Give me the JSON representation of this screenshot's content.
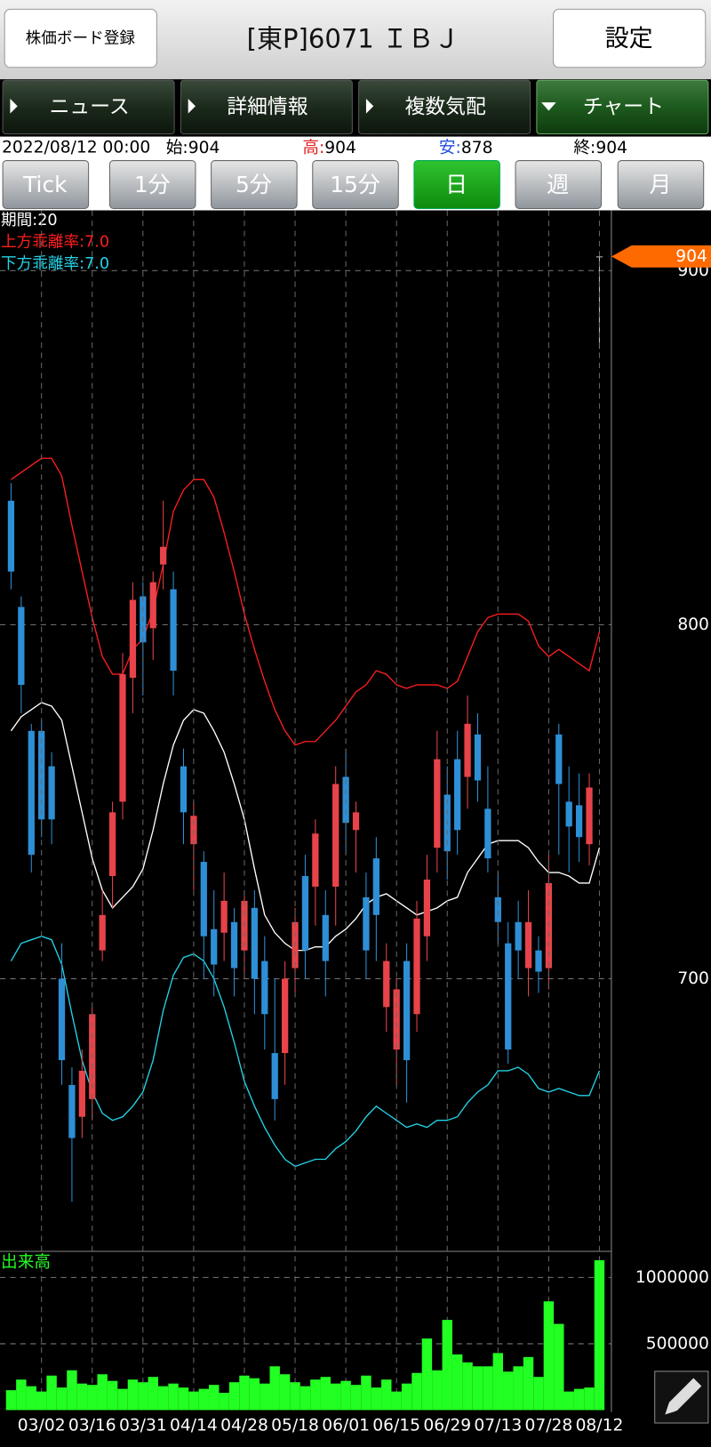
{
  "header": {
    "left_button": "株価ボード登録",
    "title": "[東P]6071 ＩＢＪ",
    "right_button": "設定"
  },
  "tabs": [
    "ニュース",
    "詳細情報",
    "複数気配",
    "チャート"
  ],
  "info": {
    "datetime": "2022/08/12 00:00",
    "open_label": "始:",
    "open": 904,
    "high_label": "高:",
    "high": 904,
    "low_label": "安:",
    "low": 878,
    "close_label": "終:",
    "close": 904
  },
  "periods": [
    "Tick",
    "1分",
    "5分",
    "15分",
    "日",
    "週",
    "月"
  ],
  "chart_data": [
    {
      "type": "candlestick",
      "ylim": [
        623,
        917
      ],
      "yticks": [
        700,
        800,
        900
      ],
      "grid": true,
      "last_price": 904,
      "up_color": "#e8434a",
      "down_color": "#2e8fd6",
      "doji_color": "#bbbbbb",
      "candles": {
        "open": [
          835,
          805,
          770,
          770,
          760,
          700,
          670,
          661,
          666,
          708,
          729,
          750,
          785,
          808,
          799,
          817,
          810,
          760,
          738,
          733,
          714,
          713,
          716,
          708,
          720,
          705,
          679,
          679,
          703,
          729,
          726,
          718,
          726,
          757,
          742,
          723,
          734,
          692,
          680,
          705,
          690,
          712,
          737,
          752,
          762,
          757,
          769,
          748,
          723,
          710,
          716,
          703,
          708,
          703,
          769,
          750,
          749,
          738,
          904
        ],
        "high": [
          840,
          808,
          772,
          773,
          764,
          710,
          675,
          680,
          692,
          725,
          750,
          792,
          812,
          812,
          815,
          835,
          815,
          765,
          750,
          736,
          725,
          730,
          720,
          725,
          725,
          712,
          700,
          705,
          720,
          735,
          745,
          725,
          760,
          765,
          750,
          730,
          740,
          710,
          700,
          710,
          722,
          735,
          770,
          760,
          770,
          780,
          775,
          760,
          730,
          716,
          722,
          725,
          712,
          735,
          772,
          760,
          758,
          758,
          904
        ],
        "low": [
          810,
          775,
          730,
          740,
          738,
          670,
          637,
          655,
          660,
          705,
          720,
          745,
          775,
          780,
          790,
          810,
          780,
          738,
          725,
          700,
          695,
          705,
          695,
          700,
          690,
          680,
          660,
          670,
          695,
          700,
          715,
          695,
          715,
          735,
          730,
          700,
          705,
          685,
          670,
          665,
          685,
          705,
          730,
          728,
          735,
          748,
          750,
          730,
          710,
          676,
          700,
          695,
          696,
          697,
          735,
          730,
          733,
          732,
          878
        ],
        "close": [
          815,
          783,
          735,
          745,
          745,
          677,
          655,
          674,
          690,
          718,
          747,
          786,
          807,
          795,
          812,
          822,
          787,
          747,
          746,
          712,
          704,
          722,
          703,
          722,
          700,
          690,
          666,
          700,
          716,
          708,
          741,
          705,
          755,
          744,
          747,
          708,
          718,
          705,
          697,
          677,
          717,
          728,
          762,
          736,
          742,
          772,
          756,
          734,
          716,
          680,
          708,
          716,
          702,
          727,
          755,
          743,
          740,
          754,
          904
        ]
      },
      "series": [
        {
          "name": "期間:20",
          "color": "#ffffff",
          "values": [
            770,
            774,
            776,
            778,
            777,
            773,
            760,
            747,
            734,
            725,
            720,
            723,
            726,
            731,
            742,
            755,
            766,
            773,
            776,
            775,
            770,
            764,
            755,
            745,
            731,
            718,
            713,
            710,
            708,
            708,
            709,
            709,
            712,
            714,
            717,
            721,
            723,
            724,
            722,
            720,
            718,
            719,
            720,
            722,
            723,
            730,
            734,
            738,
            739,
            739,
            739,
            737,
            733,
            730,
            730,
            729,
            727,
            727,
            737
          ]
        },
        {
          "name": "上方乖離率:7.0",
          "color": "#ff1e1e",
          "values": [
            841,
            843,
            845,
            847,
            847,
            842,
            828,
            815,
            802,
            791,
            786,
            786,
            793,
            796,
            804,
            817,
            832,
            838,
            841,
            841,
            836,
            826,
            815,
            803,
            793,
            784,
            776,
            770,
            766,
            767,
            767,
            770,
            773,
            777,
            781,
            783,
            787,
            786,
            783,
            782,
            783,
            783,
            783,
            782,
            784,
            791,
            798,
            802,
            803,
            803,
            803,
            801,
            794,
            791,
            793,
            791,
            789,
            787,
            798
          ]
        },
        {
          "name": "下方乖離率:7.0",
          "color": "#22d3e6",
          "values": [
            705,
            710,
            711,
            712,
            711,
            704,
            690,
            677,
            668,
            662,
            660,
            661,
            664,
            668,
            677,
            691,
            701,
            706,
            707,
            705,
            700,
            692,
            682,
            671,
            664,
            658,
            653,
            649,
            647,
            648,
            649,
            649,
            652,
            654,
            657,
            661,
            664,
            662,
            660,
            658,
            659,
            658,
            660,
            660,
            661,
            665,
            668,
            670,
            674,
            674,
            675,
            673,
            669,
            668,
            669,
            668,
            667,
            667,
            674
          ]
        }
      ]
    },
    {
      "type": "bar",
      "title": "出来高",
      "color": "#22ff22",
      "ylim": [
        0,
        1190000
      ],
      "yticks": [
        500000,
        1000000
      ],
      "grid": true,
      "categories": [
        null,
        null,
        null,
        "03/02",
        null,
        null,
        null,
        null,
        "03/16",
        null,
        null,
        null,
        null,
        "03/31",
        null,
        null,
        null,
        null,
        "04/14",
        null,
        null,
        null,
        null,
        "04/28",
        null,
        null,
        null,
        null,
        "05/18",
        null,
        null,
        null,
        null,
        "06/01",
        null,
        null,
        null,
        null,
        "06/15",
        null,
        null,
        null,
        null,
        "06/29",
        null,
        null,
        null,
        null,
        "07/13",
        null,
        null,
        null,
        null,
        "07/28",
        null,
        null,
        null,
        null,
        "08/12"
      ],
      "values": [
        150000,
        230000,
        180000,
        140000,
        260000,
        170000,
        300000,
        200000,
        190000,
        270000,
        220000,
        160000,
        230000,
        210000,
        250000,
        180000,
        200000,
        170000,
        140000,
        160000,
        190000,
        130000,
        210000,
        260000,
        240000,
        200000,
        330000,
        270000,
        210000,
        180000,
        230000,
        250000,
        200000,
        220000,
        190000,
        260000,
        170000,
        230000,
        140000,
        200000,
        280000,
        540000,
        300000,
        680000,
        420000,
        360000,
        330000,
        330000,
        430000,
        290000,
        330000,
        400000,
        250000,
        820000,
        650000,
        140000,
        160000,
        170000,
        1130000
      ]
    }
  ]
}
